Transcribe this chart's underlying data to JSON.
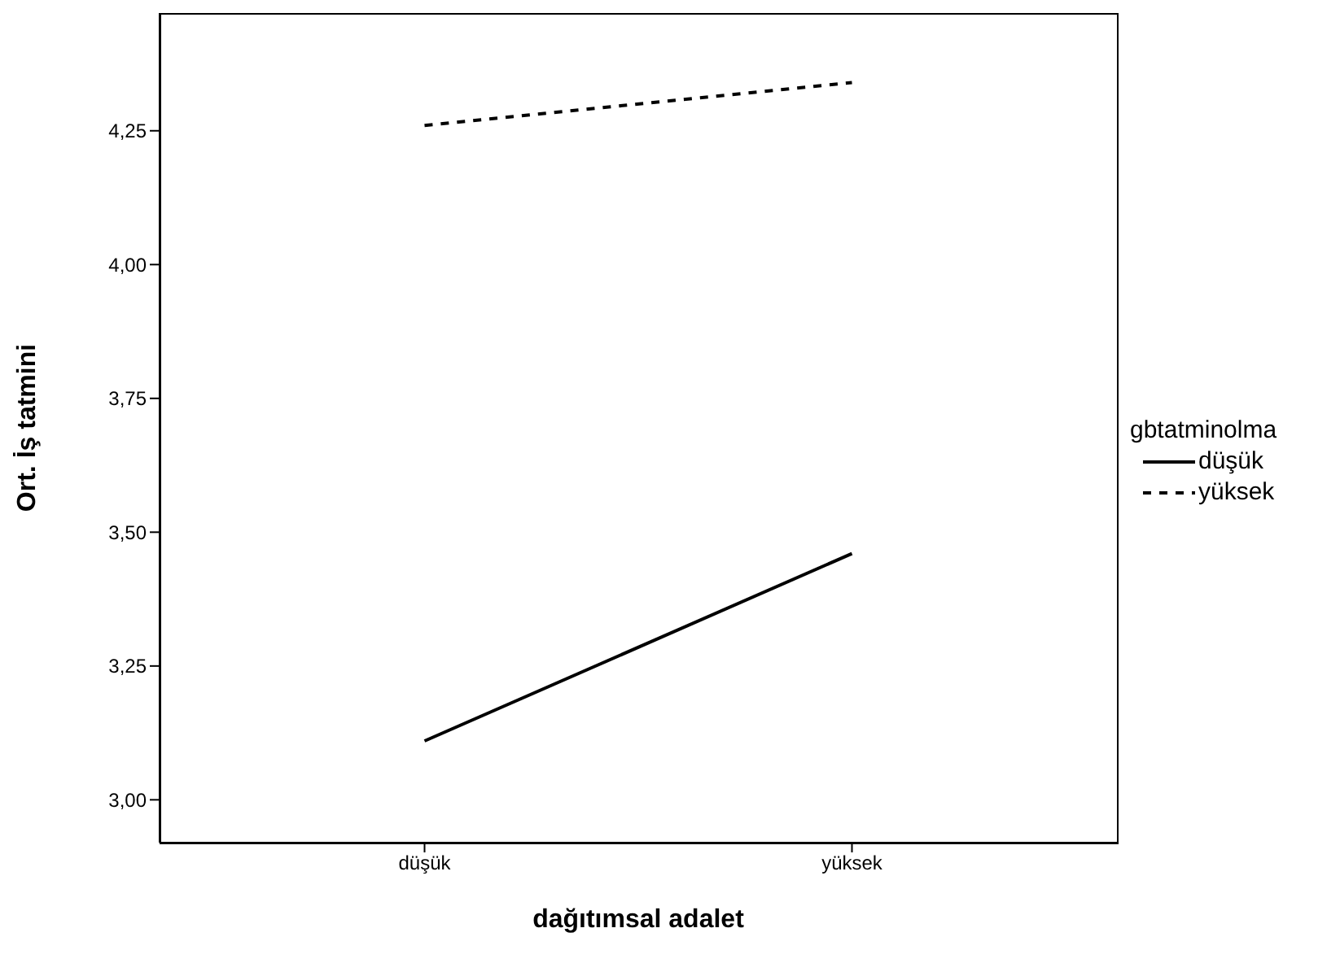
{
  "chart_data": {
    "type": "line",
    "xlabel": "dağıtımsal adalet",
    "ylabel": "Ort. İş tatmini",
    "legend_title": "gbtatminolma",
    "categories": [
      "düşük",
      "yüksek"
    ],
    "series": [
      {
        "name": "düşük",
        "color": "#000000",
        "values": [
          3.11,
          3.46
        ],
        "line_style": "solid"
      },
      {
        "name": "yüksek",
        "color": "#000000",
        "values": [
          4.26,
          4.34
        ],
        "line_style": "dashed"
      }
    ],
    "ylim": [
      2.92,
      4.47
    ],
    "yticks": [
      {
        "value": 3,
        "label": "3,00"
      },
      {
        "value": 3.25,
        "label": "3,25"
      },
      {
        "value": 3.5,
        "label": "3,50"
      },
      {
        "value": 3.75,
        "label": "3,75"
      },
      {
        "value": 4,
        "label": "4,00"
      },
      {
        "value": 4.25,
        "label": "4,25"
      }
    ],
    "grid": false,
    "legend": "right",
    "marker": "none"
  }
}
